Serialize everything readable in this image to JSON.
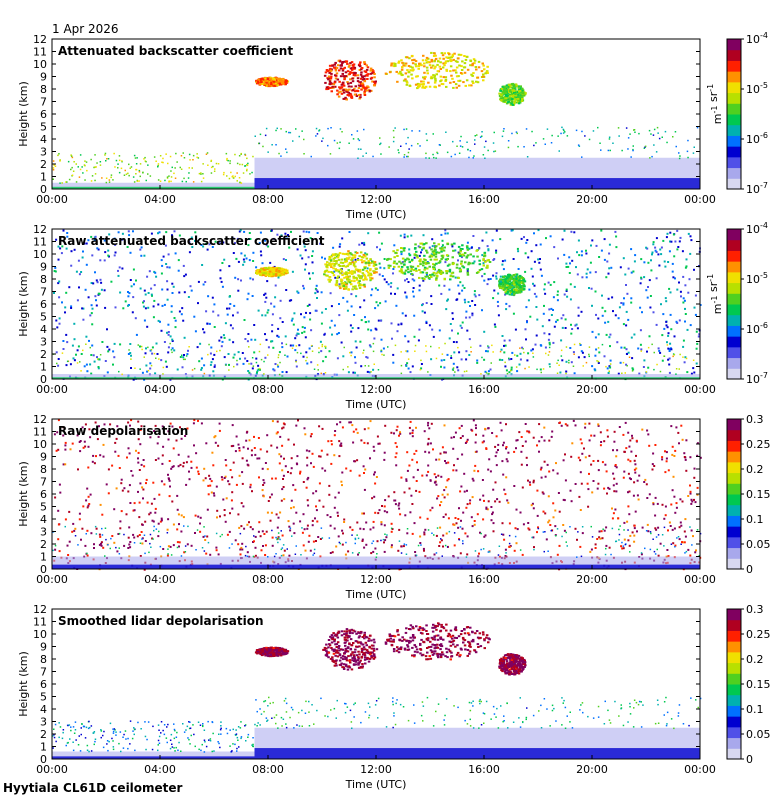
{
  "date": "1 Apr 2026",
  "site": "Hyytiala CL61D ceilometer",
  "colors": {
    "background": "#ffffff",
    "nodata_grey": "#d8d8d8",
    "colormap": [
      "#d8d8f0",
      "#a8a8ec",
      "#5050e8",
      "#0000d0",
      "#0070ff",
      "#00b0b0",
      "#00c850",
      "#50d020",
      "#b8e000",
      "#f0e000",
      "#ff9000",
      "#ff2000",
      "#b00020",
      "#800060"
    ]
  },
  "chart_data": [
    {
      "type": "heatmap",
      "title": "Attenuated backscatter coefficient",
      "xlabel": "Time (UTC)",
      "ylabel": "Height (km)",
      "x_ticks": [
        "00:00",
        "04:00",
        "08:00",
        "12:00",
        "16:00",
        "20:00",
        "00:00"
      ],
      "y_ticks": [
        "0",
        "1",
        "2",
        "3",
        "4",
        "5",
        "6",
        "7",
        "8",
        "9",
        "10",
        "11",
        "12"
      ],
      "ylim": [
        0,
        12
      ],
      "xlim_hours": [
        0,
        24
      ],
      "colorbar": {
        "scale": "log",
        "ticks": [
          "10-7",
          "10-6",
          "10-5",
          "10-4"
        ],
        "label": "m-1 sr-1",
        "range": [
          1e-07,
          0.0001
        ]
      },
      "features": [
        {
          "kind": "boundary_layer",
          "t0": 0,
          "t1": 7.5,
          "top_km": 0.5,
          "level": 0.45
        },
        {
          "kind": "boundary_layer",
          "t0": 7.5,
          "t1": 24,
          "top_km": 2.5,
          "level": 0.25
        },
        {
          "kind": "cloud",
          "t0": 7.5,
          "t1": 8.7,
          "h0": 8.3,
          "h1": 9.0,
          "level": 0.78
        },
        {
          "kind": "cloud",
          "t0": 10.0,
          "t1": 12.0,
          "h0": 7.2,
          "h1": 10.5,
          "level": 0.85
        },
        {
          "kind": "cloud",
          "t0": 12.3,
          "t1": 16.2,
          "h0": 8.0,
          "h1": 11.0,
          "level": 0.68
        },
        {
          "kind": "cloud",
          "t0": 16.5,
          "t1": 17.5,
          "h0": 6.8,
          "h1": 8.5,
          "level": 0.55
        }
      ]
    },
    {
      "type": "heatmap",
      "title": "Raw attenuated backscatter coefficient",
      "xlabel": "Time (UTC)",
      "ylabel": "Height (km)",
      "x_ticks": [
        "00:00",
        "04:00",
        "08:00",
        "12:00",
        "16:00",
        "20:00",
        "00:00"
      ],
      "y_ticks": [
        "0",
        "1",
        "2",
        "3",
        "4",
        "5",
        "6",
        "7",
        "8",
        "9",
        "10",
        "11",
        "12"
      ],
      "ylim": [
        0,
        12
      ],
      "xlim_hours": [
        0,
        24
      ],
      "colorbar": {
        "scale": "log",
        "ticks": [
          "10-7",
          "10-6",
          "10-5",
          "10-4"
        ],
        "label": "m-1 sr-1",
        "range": [
          1e-07,
          0.0001
        ]
      },
      "features": [
        {
          "kind": "noise_field",
          "t0": 0,
          "t1": 24,
          "h0": 0,
          "h1": 12,
          "level": 0.3
        },
        {
          "kind": "boundary_layer",
          "t0": 0,
          "t1": 24,
          "top_km": 0.4,
          "level": 0.45
        },
        {
          "kind": "cloud",
          "t0": 7.5,
          "t1": 8.7,
          "h0": 8.3,
          "h1": 9.0,
          "level": 0.7
        },
        {
          "kind": "cloud",
          "t0": 10.0,
          "t1": 12.0,
          "h0": 7.2,
          "h1": 10.5,
          "level": 0.65
        },
        {
          "kind": "cloud",
          "t0": 12.3,
          "t1": 16.2,
          "h0": 8.0,
          "h1": 11.0,
          "level": 0.55
        },
        {
          "kind": "cloud",
          "t0": 16.5,
          "t1": 17.5,
          "h0": 6.8,
          "h1": 8.5,
          "level": 0.5
        }
      ]
    },
    {
      "type": "heatmap",
      "title": "Raw depolarisation",
      "xlabel": "Time (UTC)",
      "ylabel": "Height (km)",
      "x_ticks": [
        "00:00",
        "04:00",
        "08:00",
        "12:00",
        "16:00",
        "20:00",
        "00:00"
      ],
      "y_ticks": [
        "0",
        "1",
        "2",
        "3",
        "4",
        "5",
        "6",
        "7",
        "8",
        "9",
        "10",
        "11",
        "12"
      ],
      "ylim": [
        0,
        12
      ],
      "xlim_hours": [
        0,
        24
      ],
      "colorbar": {
        "scale": "linear",
        "ticks": [
          "0",
          "0.05",
          "0.1",
          "0.15",
          "0.2",
          "0.25",
          "0.3"
        ],
        "label": "",
        "range": [
          0,
          0.3
        ]
      },
      "features": [
        {
          "kind": "noise_field",
          "t0": 0,
          "t1": 24,
          "h0": 0,
          "h1": 12,
          "level": 0.95
        },
        {
          "kind": "boundary_layer",
          "t0": 0,
          "t1": 24,
          "top_km": 1.0,
          "level": 0.2
        }
      ]
    },
    {
      "type": "heatmap",
      "title": "Smoothed lidar depolarisation",
      "xlabel": "Time (UTC)",
      "ylabel": "Height (km)",
      "x_ticks": [
        "00:00",
        "04:00",
        "08:00",
        "12:00",
        "16:00",
        "20:00",
        "00:00"
      ],
      "y_ticks": [
        "0",
        "1",
        "2",
        "3",
        "4",
        "5",
        "6",
        "7",
        "8",
        "9",
        "10",
        "11",
        "12"
      ],
      "ylim": [
        0,
        12
      ],
      "xlim_hours": [
        0,
        24
      ],
      "colorbar": {
        "scale": "linear",
        "ticks": [
          "0",
          "0.05",
          "0.1",
          "0.15",
          "0.2",
          "0.25",
          "0.3"
        ],
        "label": "",
        "range": [
          0,
          0.3
        ]
      },
      "features": [
        {
          "kind": "boundary_layer",
          "t0": 0,
          "t1": 7.5,
          "top_km": 0.6,
          "level": 0.2
        },
        {
          "kind": "boundary_layer",
          "t0": 7.5,
          "t1": 24,
          "top_km": 2.5,
          "level": 0.25
        },
        {
          "kind": "cloud",
          "t0": 7.5,
          "t1": 8.7,
          "h0": 8.3,
          "h1": 9.0,
          "level": 0.97
        },
        {
          "kind": "cloud",
          "t0": 10.0,
          "t1": 12.0,
          "h0": 7.2,
          "h1": 10.5,
          "level": 0.97
        },
        {
          "kind": "cloud",
          "t0": 12.3,
          "t1": 16.2,
          "h0": 8.0,
          "h1": 11.0,
          "level": 0.97
        },
        {
          "kind": "cloud",
          "t0": 16.5,
          "t1": 17.5,
          "h0": 6.8,
          "h1": 8.5,
          "level": 0.97
        }
      ]
    }
  ]
}
